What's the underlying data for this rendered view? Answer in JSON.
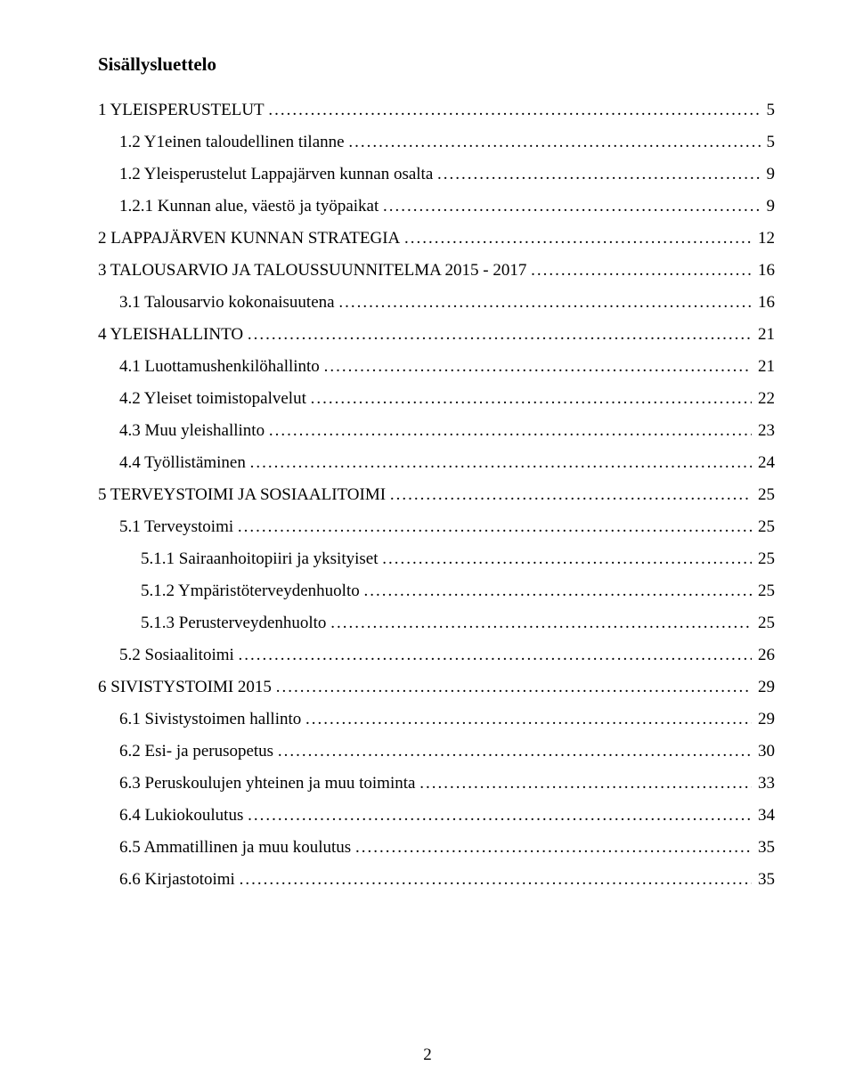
{
  "title": "Sisällysluettelo",
  "page_number": "2",
  "toc": [
    {
      "level": 0,
      "label": "1 YLEISPERUSTELUT",
      "page": "5"
    },
    {
      "level": 1,
      "label": "1.2 Y1einen taloudellinen tilanne",
      "page": "5"
    },
    {
      "level": 1,
      "label": "1.2 Yleisperustelut Lappajärven kunnan osalta",
      "page": "9"
    },
    {
      "level": 1,
      "label": "1.2.1 Kunnan alue, väestö ja työpaikat",
      "page": "9"
    },
    {
      "level": 0,
      "label": "2 LAPPAJÄRVEN KUNNAN STRATEGIA",
      "page": "12"
    },
    {
      "level": 0,
      "label": "3 TALOUSARVIO JA TALOUSSUUNNITELMA 2015 - 2017",
      "page": "16"
    },
    {
      "level": 1,
      "label": "3.1 Talousarvio kokonaisuutena",
      "page": "16"
    },
    {
      "level": 0,
      "label": "4 YLEISHALLINTO",
      "page": "21"
    },
    {
      "level": 1,
      "label": "4.1 Luottamushenkilöhallinto",
      "page": "21"
    },
    {
      "level": 1,
      "label": "4.2 Yleiset toimistopalvelut",
      "page": "22"
    },
    {
      "level": 1,
      "label": "4.3 Muu yleishallinto",
      "page": "23"
    },
    {
      "level": 1,
      "label": "4.4 Työllistäminen",
      "page": "24"
    },
    {
      "level": 0,
      "label": "5 TERVEYSTOIMI JA SOSIAALITOIMI",
      "page": "25"
    },
    {
      "level": 1,
      "label": "5.1 Terveystoimi",
      "page": "25"
    },
    {
      "level": 2,
      "label": "5.1.1 Sairaanhoitopiiri ja yksityiset",
      "page": "25"
    },
    {
      "level": 2,
      "label": "5.1.2 Ympäristöterveydenhuolto",
      "page": "25"
    },
    {
      "level": 2,
      "label": "5.1.3 Perusterveydenhuolto",
      "page": "25"
    },
    {
      "level": 1,
      "label": "5.2 Sosiaalitoimi",
      "page": "26"
    },
    {
      "level": 0,
      "label": "6 SIVISTYSTOIMI 2015",
      "page": "29"
    },
    {
      "level": 1,
      "label": "6.1 Sivistystoimen hallinto",
      "page": "29"
    },
    {
      "level": 1,
      "label": "6.2 Esi- ja perusopetus",
      "page": "30"
    },
    {
      "level": 1,
      "label": "6.3 Peruskoulujen yhteinen ja muu toiminta",
      "page": "33"
    },
    {
      "level": 1,
      "label": "6.4 Lukiokoulutus",
      "page": "34"
    },
    {
      "level": 1,
      "label": "6.5 Ammatillinen ja muu koulutus",
      "page": "35"
    },
    {
      "level": 1,
      "label": "6.6 Kirjastotoimi",
      "page": "35"
    }
  ]
}
